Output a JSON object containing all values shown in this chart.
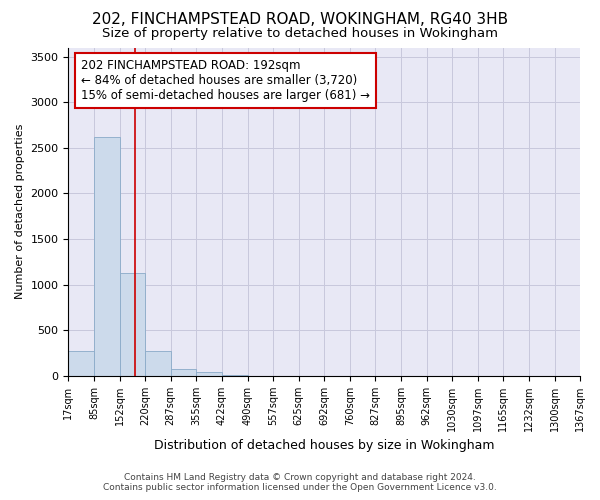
{
  "title1": "202, FINCHAMPSTEAD ROAD, WOKINGHAM, RG40 3HB",
  "title2": "Size of property relative to detached houses in Wokingham",
  "xlabel": "Distribution of detached houses by size in Wokingham",
  "ylabel": "Number of detached properties",
  "footer1": "Contains HM Land Registry data © Crown copyright and database right 2024.",
  "footer2": "Contains public sector information licensed under the Open Government Licence v3.0.",
  "annotation_line1": "202 FINCHAMPSTEAD ROAD: 192sqm",
  "annotation_line2": "← 84% of detached houses are smaller (3,720)",
  "annotation_line3": "15% of semi-detached houses are larger (681) →",
  "bar_color": "#ccdaeb",
  "bar_edge_color": "#8aaac8",
  "grid_color": "#c8c8dc",
  "background_color": "#e8e8f5",
  "red_line_color": "#cc0000",
  "red_line_x": 192,
  "bin_edges": [
    17,
    85,
    152,
    220,
    287,
    355,
    422,
    490,
    557,
    625,
    692,
    760,
    827,
    895,
    962,
    1030,
    1097,
    1165,
    1232,
    1300,
    1367
  ],
  "bin_labels": [
    "17sqm",
    "85sqm",
    "152sqm",
    "220sqm",
    "287sqm",
    "355sqm",
    "422sqm",
    "490sqm",
    "557sqm",
    "625sqm",
    "692sqm",
    "760sqm",
    "827sqm",
    "895sqm",
    "962sqm",
    "1030sqm",
    "1097sqm",
    "1165sqm",
    "1232sqm",
    "1300sqm",
    "1367sqm"
  ],
  "bar_heights": [
    270,
    2620,
    1130,
    270,
    80,
    40,
    15,
    0,
    0,
    0,
    0,
    0,
    0,
    0,
    0,
    0,
    0,
    0,
    0,
    0
  ],
  "ylim": [
    0,
    3600
  ],
  "yticks": [
    0,
    500,
    1000,
    1500,
    2000,
    2500,
    3000,
    3500
  ],
  "title1_fontsize": 11,
  "title2_fontsize": 9.5,
  "ylabel_fontsize": 8,
  "xlabel_fontsize": 9,
  "ytick_fontsize": 8,
  "xtick_fontsize": 7,
  "annotation_fontsize": 8.5,
  "footer_fontsize": 6.5
}
